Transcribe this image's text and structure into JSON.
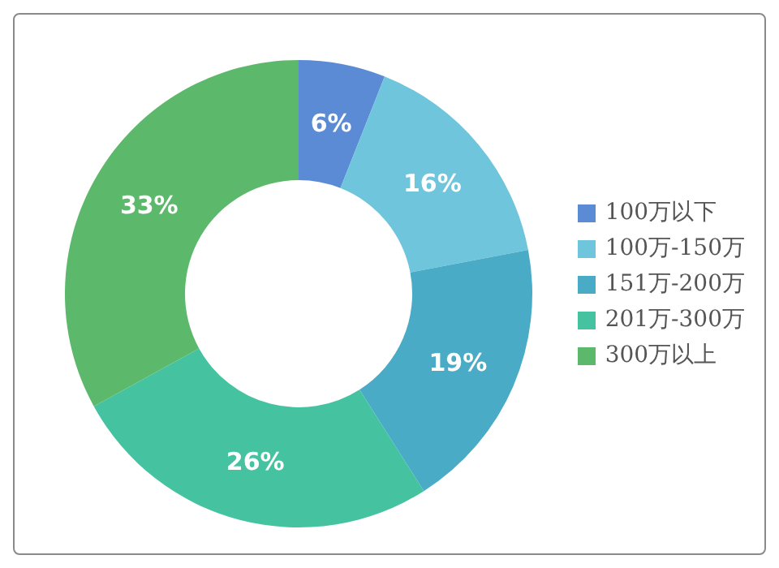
{
  "chart_data": {
    "type": "donut",
    "categories": [
      "100万以下",
      "100万-150万",
      "151万-200万",
      "201万-300万",
      "300万以上"
    ],
    "values": [
      6,
      16,
      19,
      26,
      33
    ],
    "colors": [
      "#5b8bd5",
      "#6ec5dc",
      "#4aabc6",
      "#45c3a0",
      "#5cb96b"
    ],
    "value_labels": [
      "6%",
      "16%",
      "19%",
      "26%",
      "33%"
    ],
    "legend": "right"
  }
}
